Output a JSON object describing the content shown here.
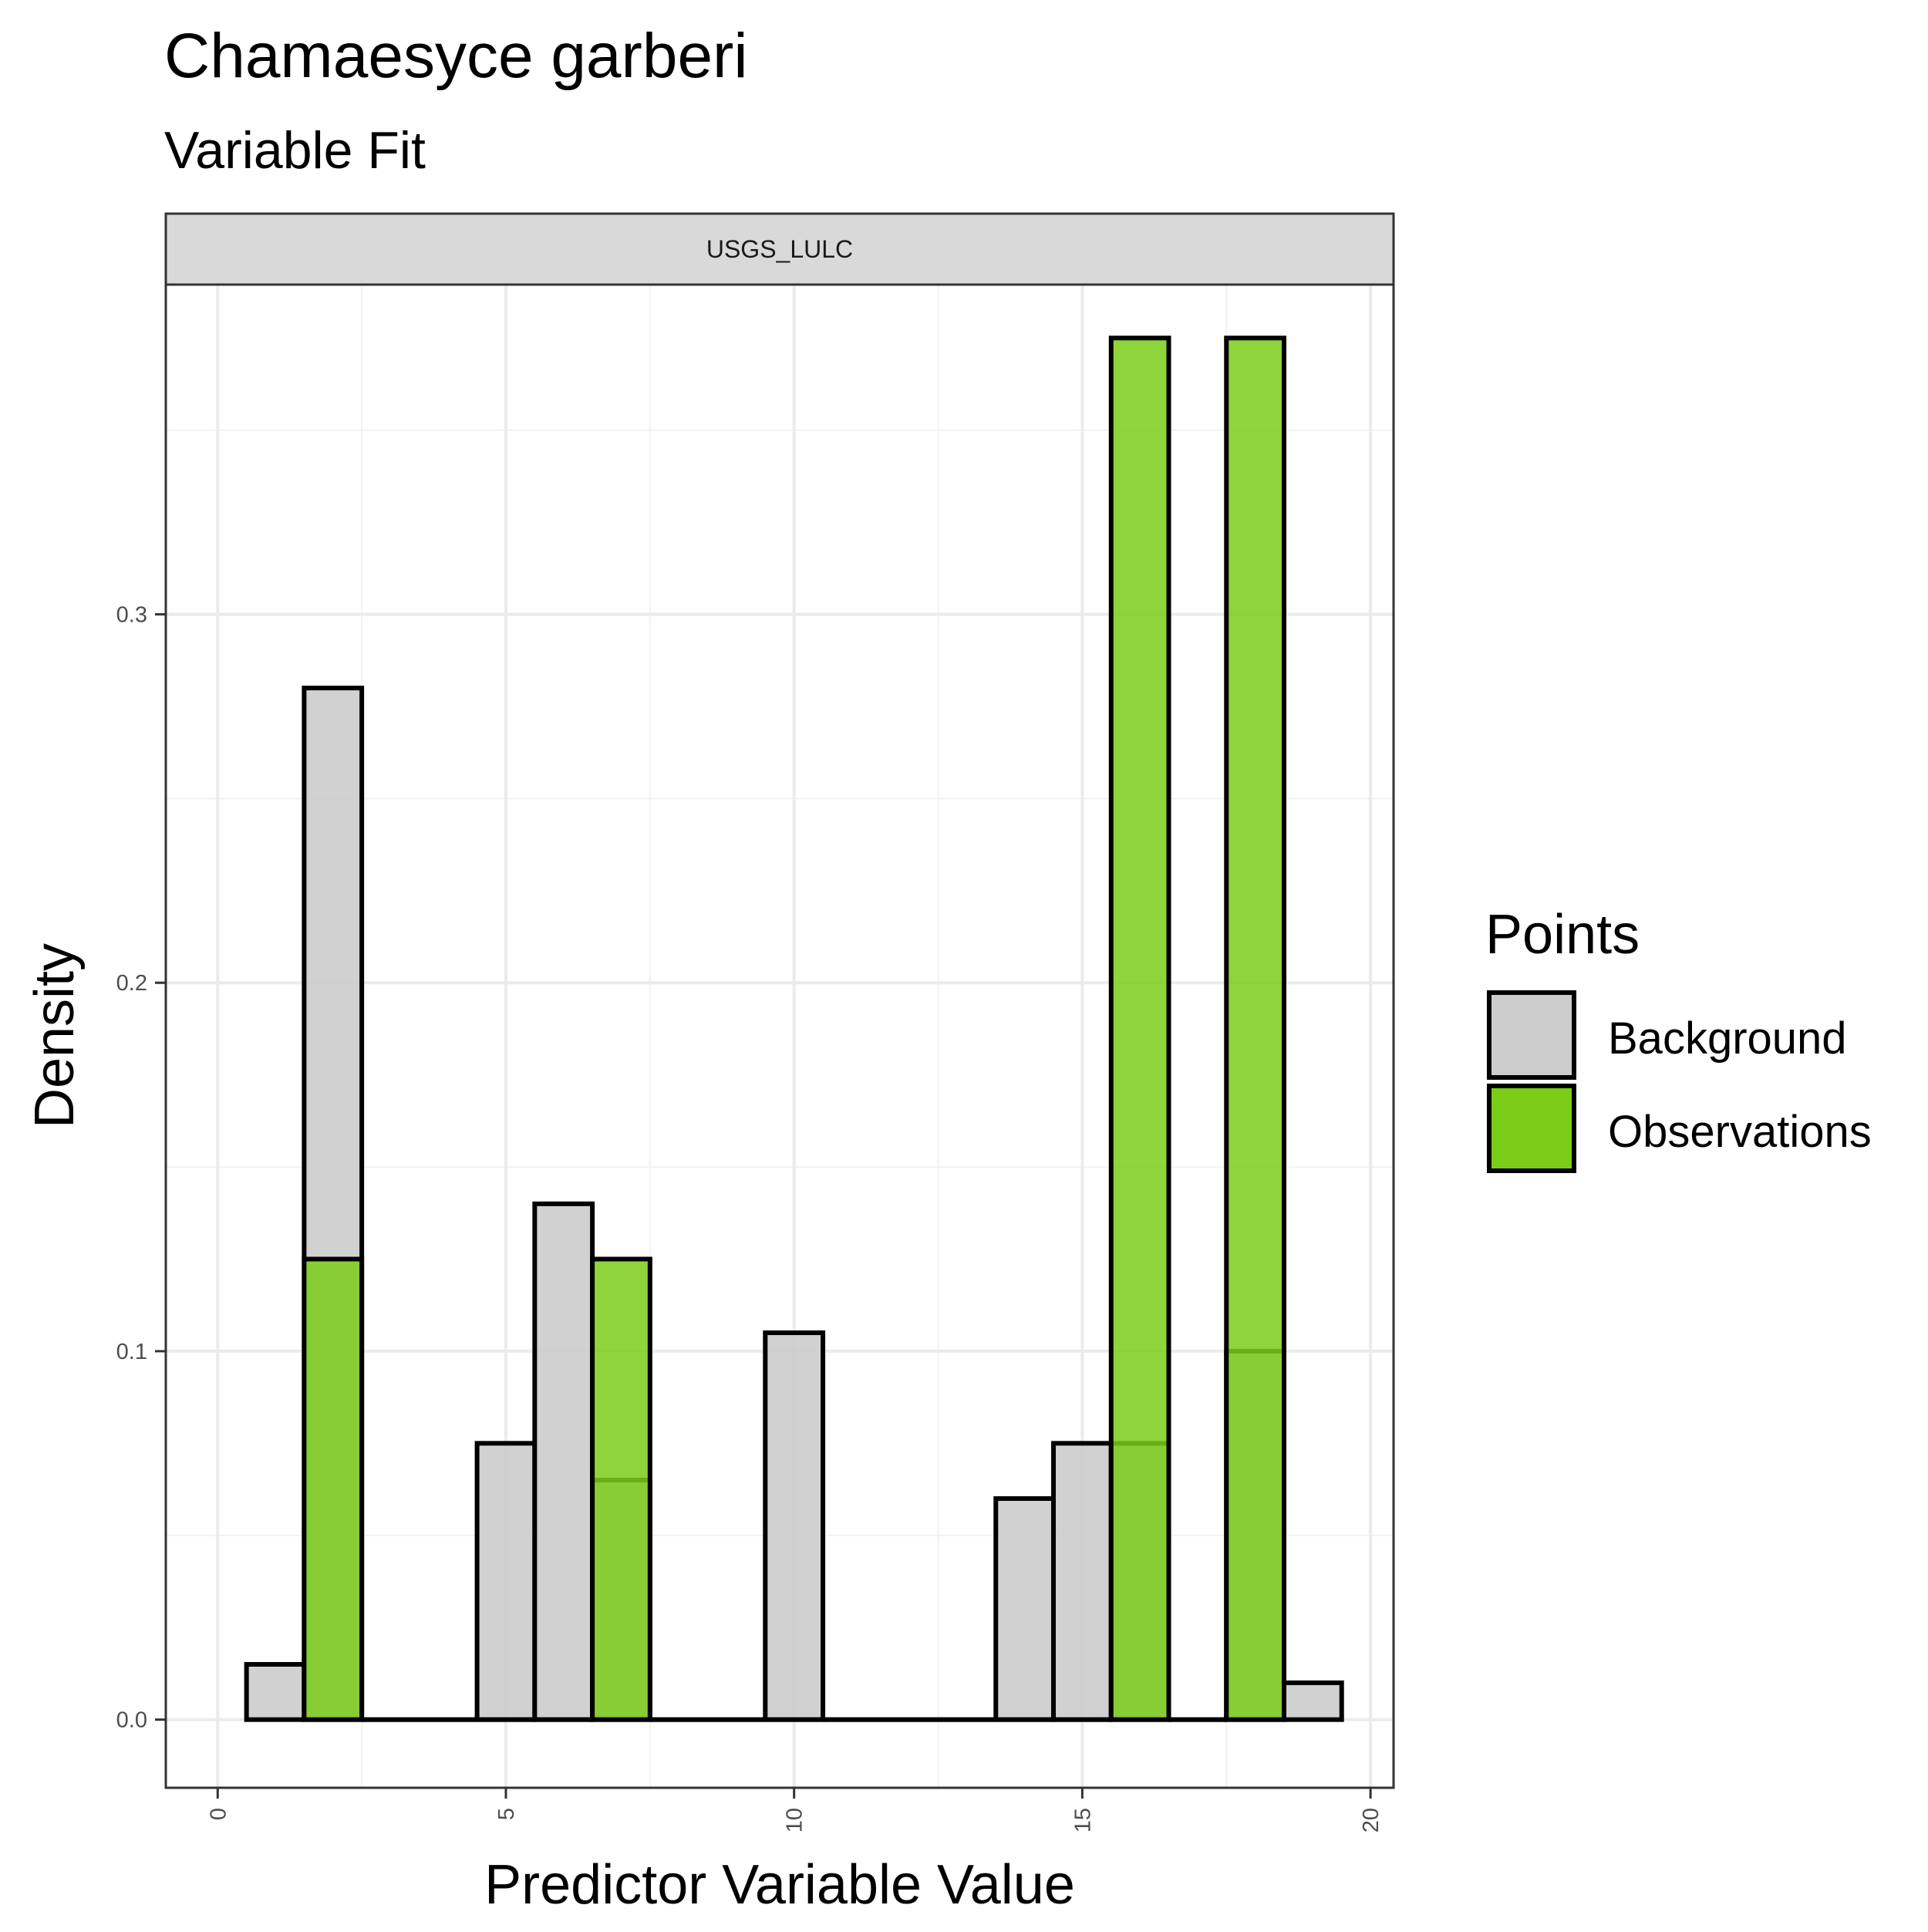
{
  "title": "Chamaesyce garberi",
  "subtitle": "Variable Fit",
  "chart_data": {
    "type": "bar",
    "facet_label": "USGS_LULC",
    "xlabel": "Predictor Variable Value",
    "ylabel": "Density",
    "xlim": [
      -0.9,
      20.4
    ],
    "ylim": [
      -0.0185,
      0.3895
    ],
    "x_ticks": [
      0,
      5,
      10,
      15,
      20
    ],
    "x_tick_labels": [
      "0",
      "5",
      "10",
      "15",
      "20"
    ],
    "y_ticks": [
      0.0,
      0.1,
      0.2,
      0.3
    ],
    "y_tick_labels": [
      "0.0",
      "0.1",
      "0.2",
      "0.3"
    ],
    "bin_width": 1,
    "grid": true,
    "legend": {
      "title": "Points",
      "position": "right",
      "entries": [
        "Background",
        "Observations"
      ]
    },
    "series": [
      {
        "name": "Background",
        "color": "#cccccc",
        "bins": [
          {
            "x": 1,
            "y": 0.015
          },
          {
            "x": 2,
            "y": 0.28
          },
          {
            "x": 3,
            "y": 0
          },
          {
            "x": 4,
            "y": 0
          },
          {
            "x": 5,
            "y": 0.075
          },
          {
            "x": 6,
            "y": 0.14
          },
          {
            "x": 7,
            "y": 0.065
          },
          {
            "x": 8,
            "y": 0
          },
          {
            "x": 9,
            "y": 0
          },
          {
            "x": 10,
            "y": 0.105
          },
          {
            "x": 11,
            "y": 0
          },
          {
            "x": 12,
            "y": 0
          },
          {
            "x": 13,
            "y": 0
          },
          {
            "x": 14,
            "y": 0.06
          },
          {
            "x": 15,
            "y": 0.075
          },
          {
            "x": 16,
            "y": 0.075
          },
          {
            "x": 17,
            "y": 0
          },
          {
            "x": 18,
            "y": 0.1
          },
          {
            "x": 19,
            "y": 0.01
          }
        ]
      },
      {
        "name": "Observations",
        "color": "#7acc19",
        "bins": [
          {
            "x": 2,
            "y": 0.125
          },
          {
            "x": 7,
            "y": 0.125
          },
          {
            "x": 16,
            "y": 0.375
          },
          {
            "x": 18,
            "y": 0.375
          }
        ]
      }
    ]
  }
}
